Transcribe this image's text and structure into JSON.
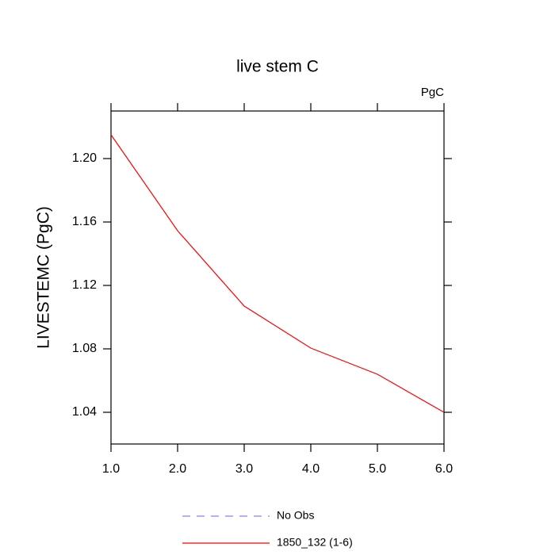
{
  "chart_data": {
    "type": "line",
    "title": "live stem C",
    "units": "PgC",
    "y_label": "LIVESTEMC  (PgC)",
    "x": [
      1,
      2,
      3,
      4,
      5,
      6
    ],
    "series": [
      {
        "name": "No Obs",
        "color": "#8080ff",
        "dashed": true,
        "values": [
          null,
          null,
          null,
          null,
          null,
          null
        ]
      },
      {
        "name": "1850_132 (1-6)",
        "color": "#ff0000",
        "dashed": false,
        "values": [
          1.215,
          1.1545,
          1.107,
          1.0805,
          1.064,
          1.04
        ]
      }
    ],
    "xlim": [
      1,
      6
    ],
    "xticks": [
      {
        "value": 1,
        "label": "1.0"
      },
      {
        "value": 2,
        "label": "2.0"
      },
      {
        "value": 3,
        "label": "3.0"
      },
      {
        "value": 4,
        "label": "4.0"
      },
      {
        "value": 5,
        "label": "5.0"
      },
      {
        "value": 6,
        "label": "6.0"
      }
    ],
    "ylim": [
      1.02,
      1.23
    ],
    "yticks": [
      1.04,
      1.08,
      1.12,
      1.16,
      {
        "value": 1.2,
        "label": "1.20"
      }
    ],
    "grid": false
  }
}
